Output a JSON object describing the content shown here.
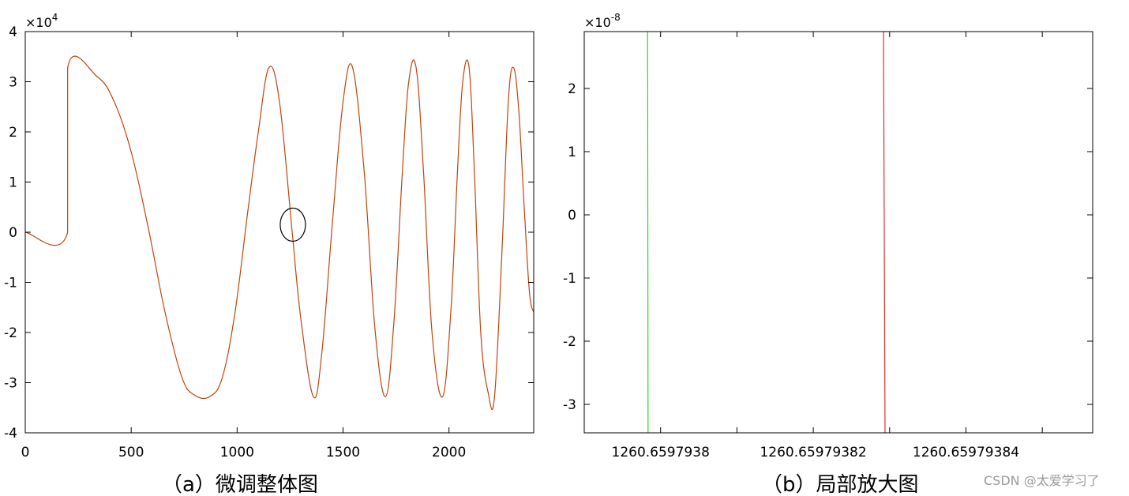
{
  "chart_data": [
    {
      "type": "line",
      "caption": "（a）微调整体图",
      "y_multiplier": "×10",
      "y_multiplier_exp": "4",
      "xlim": [
        0,
        2400
      ],
      "ylim": [
        -4,
        4
      ],
      "x_ticks": [
        0,
        500,
        1000,
        1500,
        2000
      ],
      "x_tick_labels": [
        "0",
        "500",
        "1000",
        "1500",
        "2000"
      ],
      "y_ticks": [
        4,
        3,
        2,
        1,
        0,
        -1,
        -2,
        -3,
        -4
      ],
      "y_tick_labels": [
        "4",
        "3",
        "2",
        "1",
        "0",
        "-1",
        "-2",
        "-3",
        "-4"
      ],
      "series": [
        {
          "color": "#c0440a",
          "x": [
            0,
            200,
            200,
            340,
            420,
            500,
            580,
            660,
            740,
            800,
            870,
            930,
            990,
            1050,
            1100,
            1150,
            1200,
            1260,
            1300,
            1360,
            1400,
            1450,
            1500,
            1545,
            1600,
            1650,
            1700,
            1740,
            1780,
            1810,
            1845,
            1880,
            1920,
            1970,
            2010,
            2040,
            2065,
            2095,
            2120,
            2150,
            2185,
            2215,
            2250,
            2280,
            2305,
            2330,
            2355,
            2380,
            2400
          ],
          "y": [
            0,
            0,
            3.28,
            3.1,
            2.6,
            1.6,
            0.1,
            -1.6,
            -2.9,
            -3.25,
            -3.28,
            -2.9,
            -1.6,
            0.4,
            2.0,
            3.28,
            2.6,
            0.0,
            -1.7,
            -3.28,
            -2.4,
            0.2,
            2.6,
            3.28,
            1.2,
            -1.9,
            -3.28,
            -1.8,
            1.2,
            3.0,
            3.28,
            1.2,
            -2.0,
            -3.28,
            -1.5,
            1.2,
            3.0,
            3.28,
            1.2,
            -2.0,
            -3.2,
            -3.28,
            -0.4,
            2.6,
            3.28,
            2.4,
            0.5,
            -1.2,
            -1.6
          ]
        }
      ],
      "annotation": {
        "shape": "ellipse",
        "x": 1263,
        "y": 0.15
      }
    },
    {
      "type": "line",
      "caption": "（b）局部放大图",
      "y_multiplier": "×10",
      "y_multiplier_exp": "-8",
      "xlim": [
        0,
        3.33
      ],
      "ylim": [
        -3.45,
        2.9
      ],
      "x_ticks": [
        0.0,
        0.5,
        1.0,
        1.5,
        2.0,
        2.5,
        3.0
      ],
      "x_tick_labels": [
        "",
        "1260.6597938",
        "",
        "1260.65979382",
        "",
        "1260.65979384",
        ""
      ],
      "x_label_ticks": [
        0.5,
        1.5,
        2.5
      ],
      "y_ticks": [
        2,
        1,
        0,
        -1,
        -2,
        -3
      ],
      "y_tick_labels": [
        "2",
        "1",
        "0",
        "-1",
        "-2",
        "-3"
      ],
      "series": [
        {
          "color": "#22dd22",
          "x": [
            0.415,
            0.418
          ],
          "y": [
            2.9,
            -3.45
          ]
        },
        {
          "color": "#e03030",
          "x": [
            1.96,
            1.97
          ],
          "y": [
            2.9,
            -3.45
          ]
        }
      ]
    }
  ],
  "watermark": "CSDN @太爱学习了"
}
